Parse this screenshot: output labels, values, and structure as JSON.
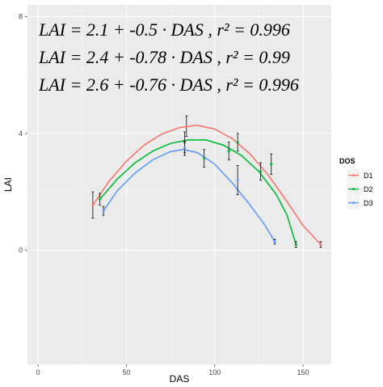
{
  "chart_data": {
    "type": "scatter",
    "title": "",
    "xlabel": "DAS",
    "ylabel": "LAI",
    "xlim": [
      -6,
      166
    ],
    "ylim": [
      -3.9,
      8.4
    ],
    "x_ticks": [
      0,
      50,
      100,
      150
    ],
    "y_ticks": [
      0,
      4,
      8
    ],
    "grid": true,
    "background": "#ebebeb",
    "legend": {
      "title": "DOS",
      "placement": "right",
      "entries": [
        "D1",
        "D2",
        "D3"
      ]
    },
    "annotations": [
      "LAI = 2.1 + -0.5 · DAS ,  r² = 0.996",
      "LAI = 2.4 + -0.78 · DAS ,  r² = 0.99",
      "LAI = 2.6 + -0.76 · DAS ,  r² = 0.996"
    ],
    "series": [
      {
        "name": "D1",
        "color": "#f8766d",
        "points": [
          {
            "x": 31,
            "y": 1.55,
            "err": 0.45
          },
          {
            "x": 84,
            "y": 4.25,
            "err": 0.35
          },
          {
            "x": 160,
            "y": 0.2,
            "err": 0.1
          }
        ],
        "curve": [
          [
            31,
            1.55
          ],
          [
            40,
            2.35
          ],
          [
            50,
            3.05
          ],
          [
            60,
            3.6
          ],
          [
            70,
            3.98
          ],
          [
            80,
            4.2
          ],
          [
            90,
            4.28
          ],
          [
            100,
            4.15
          ],
          [
            110,
            3.82
          ],
          [
            120,
            3.3
          ],
          [
            130,
            2.6
          ],
          [
            140,
            1.75
          ],
          [
            150,
            0.85
          ],
          [
            160,
            0.2
          ]
        ]
      },
      {
        "name": "D2",
        "color": "#00ba38",
        "points": [
          {
            "x": 35,
            "y": 1.75,
            "err": 0.2
          },
          {
            "x": 83,
            "y": 3.7,
            "err": 0.35
          },
          {
            "x": 94,
            "y": 3.15,
            "err": 0.3
          },
          {
            "x": 108,
            "y": 3.4,
            "err": 0.3
          },
          {
            "x": 113,
            "y": 3.7,
            "err": 0.3
          },
          {
            "x": 126,
            "y": 2.7,
            "err": 0.3
          },
          {
            "x": 132,
            "y": 2.95,
            "err": 0.35
          },
          {
            "x": 146,
            "y": 0.2,
            "err": 0.1
          }
        ],
        "curve": [
          [
            35,
            1.75
          ],
          [
            45,
            2.45
          ],
          [
            55,
            3.0
          ],
          [
            65,
            3.4
          ],
          [
            75,
            3.66
          ],
          [
            85,
            3.78
          ],
          [
            95,
            3.78
          ],
          [
            105,
            3.6
          ],
          [
            115,
            3.25
          ],
          [
            125,
            2.7
          ],
          [
            135,
            1.9
          ],
          [
            141,
            1.2
          ],
          [
            146,
            0.2
          ]
        ]
      },
      {
        "name": "D3",
        "color": "#619cff",
        "points": [
          {
            "x": 37,
            "y": 1.35,
            "err": 0.15
          },
          {
            "x": 83,
            "y": 3.5,
            "err": 0.25
          },
          {
            "x": 113,
            "y": 2.4,
            "err": 0.5
          },
          {
            "x": 134,
            "y": 0.3,
            "err": 0.08
          }
        ],
        "curve": [
          [
            37,
            1.35
          ],
          [
            45,
            2.05
          ],
          [
            55,
            2.65
          ],
          [
            65,
            3.1
          ],
          [
            75,
            3.38
          ],
          [
            82,
            3.45
          ],
          [
            90,
            3.35
          ],
          [
            100,
            2.95
          ],
          [
            110,
            2.3
          ],
          [
            120,
            1.55
          ],
          [
            128,
            0.9
          ],
          [
            134,
            0.3
          ]
        ]
      }
    ]
  }
}
